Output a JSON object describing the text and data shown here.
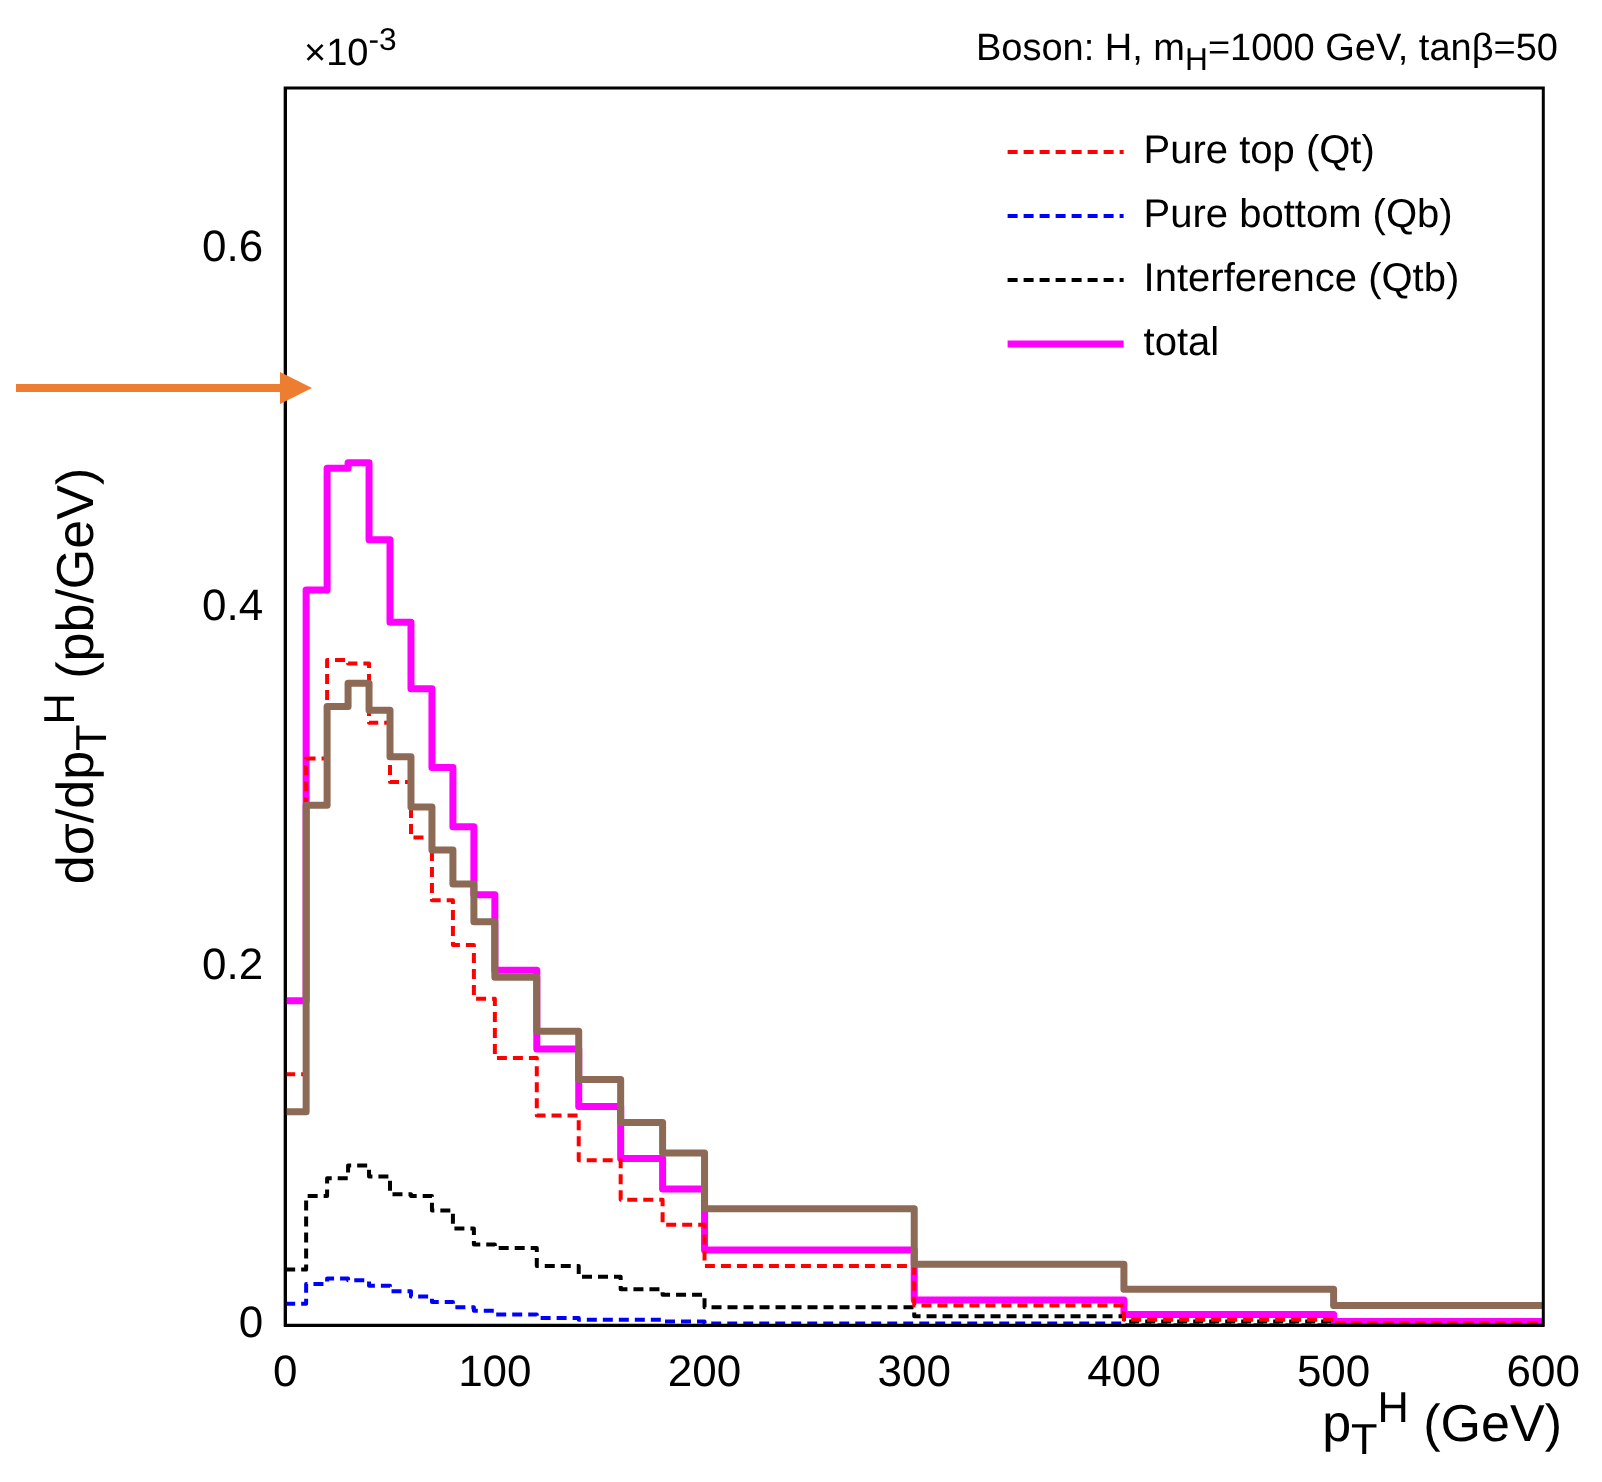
{
  "chart_data": {
    "type": "histogram",
    "title": "Boson: H, m$_{H}$=1000 GeV, tanβ=50",
    "xlabel": "p$_{T}$$^{H}$ (GeV)",
    "ylabel": "dσ/dp$_{T}$$^{H}$ (pb/GeV)",
    "annotations": [
      "×10$^{-3}$"
    ],
    "bins": [
      0,
      10,
      20,
      30,
      40,
      50,
      60,
      70,
      80,
      90,
      100,
      120,
      140,
      160,
      180,
      200,
      300,
      400,
      500,
      600
    ],
    "series": [
      {
        "color": "#8c6a55",
        "line_style": "solid",
        "values": [
          0.119,
          0.29,
          0.345,
          0.358,
          0.343,
          0.317,
          0.289,
          0.265,
          0.246,
          0.225,
          0.194,
          0.164,
          0.137,
          0.113,
          0.096,
          0.065,
          0.034,
          0.02,
          0.011
        ]
      },
      {
        "name": "Pure top (Qt)",
        "color": "#ff0000",
        "line_style": "dashed",
        "values": [
          0.14,
          0.316,
          0.371,
          0.369,
          0.336,
          0.303,
          0.272,
          0.237,
          0.212,
          0.182,
          0.149,
          0.117,
          0.092,
          0.07,
          0.056,
          0.033,
          0.011,
          0.003,
          0.001
        ]
      },
      {
        "name": "Pure bottom (Qb)",
        "color": "#0000ff",
        "line_style": "dashed",
        "values": [
          0.012,
          0.023,
          0.026,
          0.025,
          0.022,
          0.019,
          0.016,
          0.013,
          0.01,
          0.008,
          0.006,
          0.004,
          0.003,
          0.003,
          0.002,
          0.001,
          0.001,
          0,
          0
        ]
      },
      {
        "name": "Interference (Qtb)",
        "color": "#000000",
        "line_style": "dashed",
        "values": [
          0.031,
          0.072,
          0.082,
          0.089,
          0.083,
          0.073,
          0.072,
          0.064,
          0.054,
          0.045,
          0.043,
          0.033,
          0.027,
          0.02,
          0.017,
          0.01,
          0.005,
          0.002,
          0.001
        ]
      },
      {
        "name": "total",
        "color": "#ff00ff",
        "line_style": "solid",
        "values": [
          0.181,
          0.41,
          0.478,
          0.481,
          0.438,
          0.392,
          0.355,
          0.311,
          0.278,
          0.24,
          0.198,
          0.154,
          0.122,
          0.093,
          0.076,
          0.042,
          0.014,
          0.006,
          0.002
        ]
      }
    ],
    "xlim": [
      0,
      600
    ],
    "xticks": [
      0,
      100,
      200,
      300,
      400,
      500,
      600
    ],
    "ylim": [
      0,
      0.69
    ],
    "yticks": [
      {
        "value": 0,
        "label": "0"
      },
      0.2,
      0.4,
      0.6
    ],
    "legend": "top right",
    "grid": false
  }
}
